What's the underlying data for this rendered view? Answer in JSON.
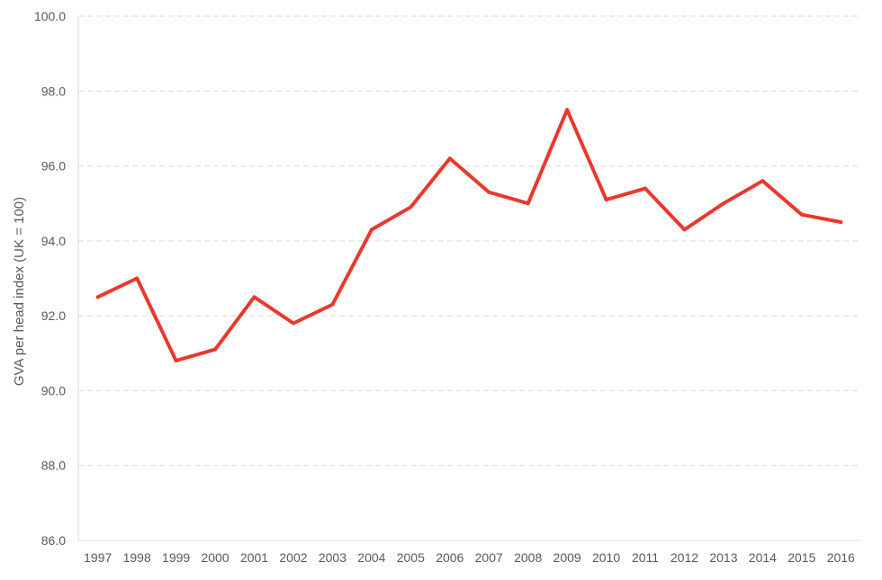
{
  "chart_data": {
    "type": "line",
    "title": "",
    "xlabel": "",
    "ylabel": "GVA per head index (UK = 100)",
    "categories": [
      "1997",
      "1998",
      "1999",
      "2000",
      "2001",
      "2002",
      "2003",
      "2004",
      "2005",
      "2006",
      "2007",
      "2008",
      "2009",
      "2010",
      "2011",
      "2012",
      "2013",
      "2014",
      "2015",
      "2016"
    ],
    "series": [
      {
        "color": "#e8392f",
        "values": [
          92.5,
          93.0,
          90.8,
          91.1,
          92.5,
          91.8,
          92.3,
          94.3,
          94.9,
          96.2,
          95.3,
          95.0,
          97.5,
          95.1,
          95.4,
          94.3,
          95.0,
          95.6,
          94.7,
          94.5
        ]
      }
    ],
    "ylim": [
      86.0,
      100.0
    ],
    "yticks": [
      "86.0",
      "88.0",
      "90.0",
      "92.0",
      "94.0",
      "96.0",
      "98.0",
      "100.0"
    ],
    "grid": "horizontal dashed",
    "legend": "none"
  }
}
